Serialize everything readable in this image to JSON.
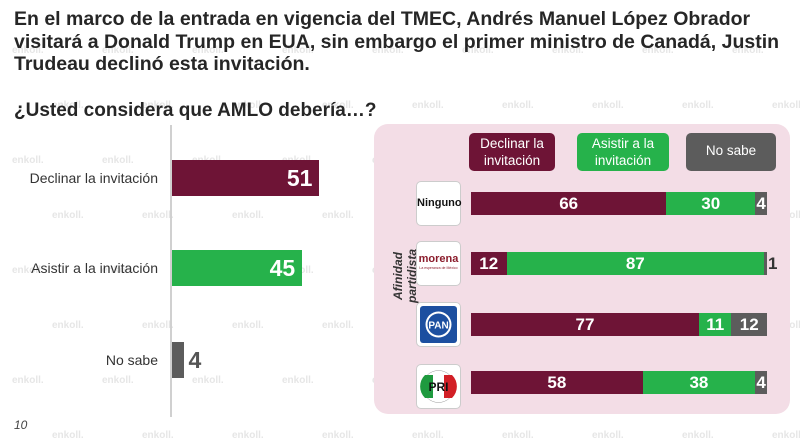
{
  "headline": "En el marco de la entrada en vigencia del TMEC, Andrés Manuel López Obrador visitará a Donald Trump en EUA, sin embargo el primer ministro de Canadá, Justin Trudeau declinó esta invitación.",
  "question": "¿Usted considera que AMLO debería…?",
  "page_number": "10",
  "watermark_text": "enkoll.",
  "colors": {
    "declinar": "#6e1436",
    "asistir": "#26b24b",
    "no_sabe": "#5c5c5c",
    "panel": "#f3dde6"
  },
  "chart_data": [
    {
      "type": "bar",
      "orientation": "horizontal",
      "categories": [
        "Declinar la invitación",
        "Asistir a la invitación",
        "No sabe"
      ],
      "values": [
        51,
        45,
        4
      ],
      "colors": [
        "#6e1436",
        "#26b24b",
        "#5c5c5c"
      ],
      "title": "",
      "xlabel": "",
      "ylabel": "",
      "xlim": [
        0,
        100
      ]
    },
    {
      "type": "bar",
      "orientation": "horizontal",
      "stacked": true,
      "ylabel": "Afinidad partidista",
      "legend": [
        "Declinar la invitación",
        "Asistir a la invitación",
        "No sabe"
      ],
      "legend_placement": "top",
      "categories": [
        {
          "label": "Ninguno",
          "logo": "text-logo"
        },
        {
          "label": "morena",
          "sublabel": "La esperanza de México",
          "logo": "morena-logo"
        },
        {
          "label": "PAN",
          "logo": "pan-logo"
        },
        {
          "label": "PRI",
          "logo": "pri-logo"
        }
      ],
      "series": [
        {
          "name": "Declinar la invitación",
          "values": [
            66,
            12,
            77,
            58
          ]
        },
        {
          "name": "Asistir a la invitación",
          "values": [
            30,
            87,
            11,
            38
          ]
        },
        {
          "name": "No sabe",
          "values": [
            4,
            1,
            12,
            4
          ]
        }
      ],
      "xlim": [
        0,
        100
      ]
    }
  ]
}
